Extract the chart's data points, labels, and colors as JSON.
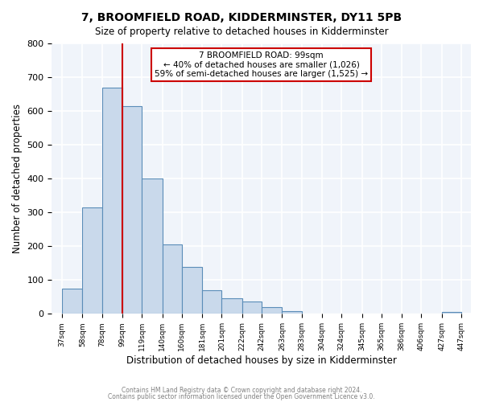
{
  "title": "7, BROOMFIELD ROAD, KIDDERMINSTER, DY11 5PB",
  "subtitle": "Size of property relative to detached houses in Kidderminster",
  "xlabel": "Distribution of detached houses by size in Kidderminster",
  "ylabel": "Number of detached properties",
  "bar_color": "#c9d9eb",
  "bar_edge_color": "#5b8db8",
  "background_color": "#f0f4fa",
  "grid_color": "white",
  "annotation_box_color": "#cc0000",
  "property_line_color": "#cc0000",
  "property_value": 99,
  "annotation_title": "7 BROOMFIELD ROAD: 99sqm",
  "annotation_line1": "← 40% of detached houses are smaller (1,026)",
  "annotation_line2": "59% of semi-detached houses are larger (1,525) →",
  "bins": [
    37,
    58,
    78,
    99,
    119,
    140,
    160,
    181,
    201,
    222,
    242,
    263,
    283,
    304,
    324,
    345,
    365,
    386,
    406,
    427,
    447
  ],
  "counts": [
    75,
    315,
    670,
    615,
    400,
    205,
    138,
    70,
    47,
    37,
    20,
    7,
    0,
    0,
    0,
    0,
    0,
    0,
    0,
    5
  ],
  "tick_labels": [
    "37sqm",
    "58sqm",
    "78sqm",
    "99sqm",
    "119sqm",
    "140sqm",
    "160sqm",
    "181sqm",
    "201sqm",
    "222sqm",
    "242sqm",
    "263sqm",
    "283sqm",
    "304sqm",
    "324sqm",
    "345sqm",
    "365sqm",
    "386sqm",
    "406sqm",
    "427sqm",
    "447sqm"
  ],
  "ylim": [
    0,
    800
  ],
  "yticks": [
    0,
    100,
    200,
    300,
    400,
    500,
    600,
    700,
    800
  ],
  "footer_line1": "Contains HM Land Registry data © Crown copyright and database right 2024.",
  "footer_line2": "Contains public sector information licensed under the Open Government Licence v3.0."
}
